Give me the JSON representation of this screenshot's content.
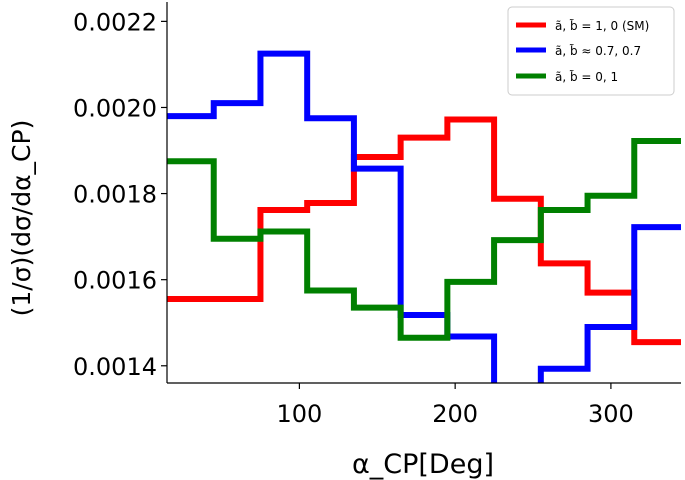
{
  "chart_data": {
    "type": "line",
    "step": true,
    "xlabel": "α_CP[Deg]",
    "ylabel": "(1/σ)(dσ/dα_CP)",
    "xlim": [
      15,
      345
    ],
    "ylim": [
      0.00136,
      0.002245
    ],
    "xticks": [
      100,
      200,
      300
    ],
    "xtick_labels": [
      "100",
      "200",
      "300"
    ],
    "yticks": [
      0.0014,
      0.0016,
      0.0018,
      0.002,
      0.0022
    ],
    "ytick_labels": [
      "0.0014",
      "0.0016",
      "0.0018",
      "0.0020",
      "0.0022"
    ],
    "grid": false,
    "legend_position": "top-right",
    "bin_edges": [
      15,
      45,
      75,
      105,
      135,
      165,
      195,
      225,
      255,
      285,
      315,
      345
    ],
    "series": [
      {
        "name": "ã, b̃ = 1, 0 (SM)",
        "color": "#ff0000",
        "values": [
          0.001555,
          0.001555,
          0.001762,
          0.001778,
          0.001885,
          0.00193,
          0.001972,
          0.001788,
          0.001638,
          0.00157,
          0.001455
        ]
      },
      {
        "name": "ã, b̃ ≈ 0.7, 0.7",
        "color": "#0000ff",
        "values": [
          0.00198,
          0.00201,
          0.002125,
          0.001975,
          0.001858,
          0.001518,
          0.001468,
          0.001315,
          0.001393,
          0.00149,
          0.001722
        ]
      },
      {
        "name": "ã, b̃ = 0, 1",
        "color": "#008000",
        "values": [
          0.001875,
          0.001695,
          0.001712,
          0.001575,
          0.001535,
          0.001465,
          0.001595,
          0.001692,
          0.001762,
          0.001795,
          0.001922
        ]
      }
    ]
  }
}
